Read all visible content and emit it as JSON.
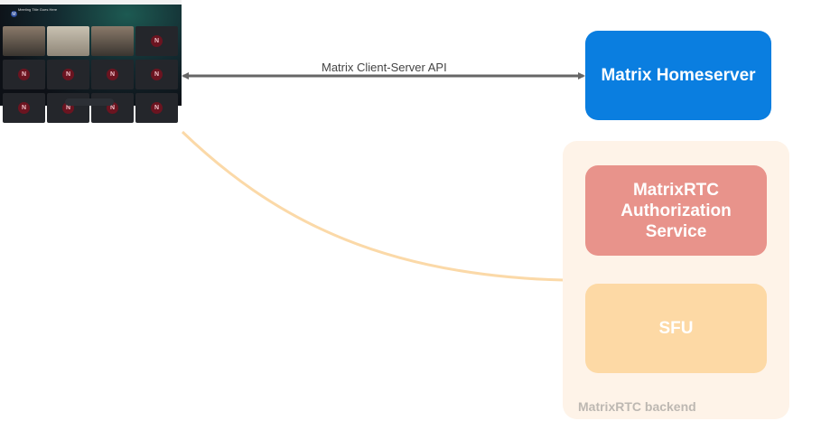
{
  "client": {
    "meeting_title": "Meeting Title Goes Here",
    "avatar_letter": "N",
    "avatar_initial": "M"
  },
  "edges": {
    "client_server": "Matrix Client-Server API"
  },
  "nodes": {
    "homeserver": "Matrix Homeserver",
    "auth_service": "MatrixRTC Authorization Service",
    "sfu": "SFU",
    "backend_group": "MatrixRTC backend"
  },
  "colors": {
    "homeserver": "#0a7ee0",
    "auth_service": "#e8938b",
    "sfu": "#fdd9a5",
    "backend_group": "#fef3e8",
    "curve": "#fbd9a8",
    "arrow": "#666666"
  }
}
